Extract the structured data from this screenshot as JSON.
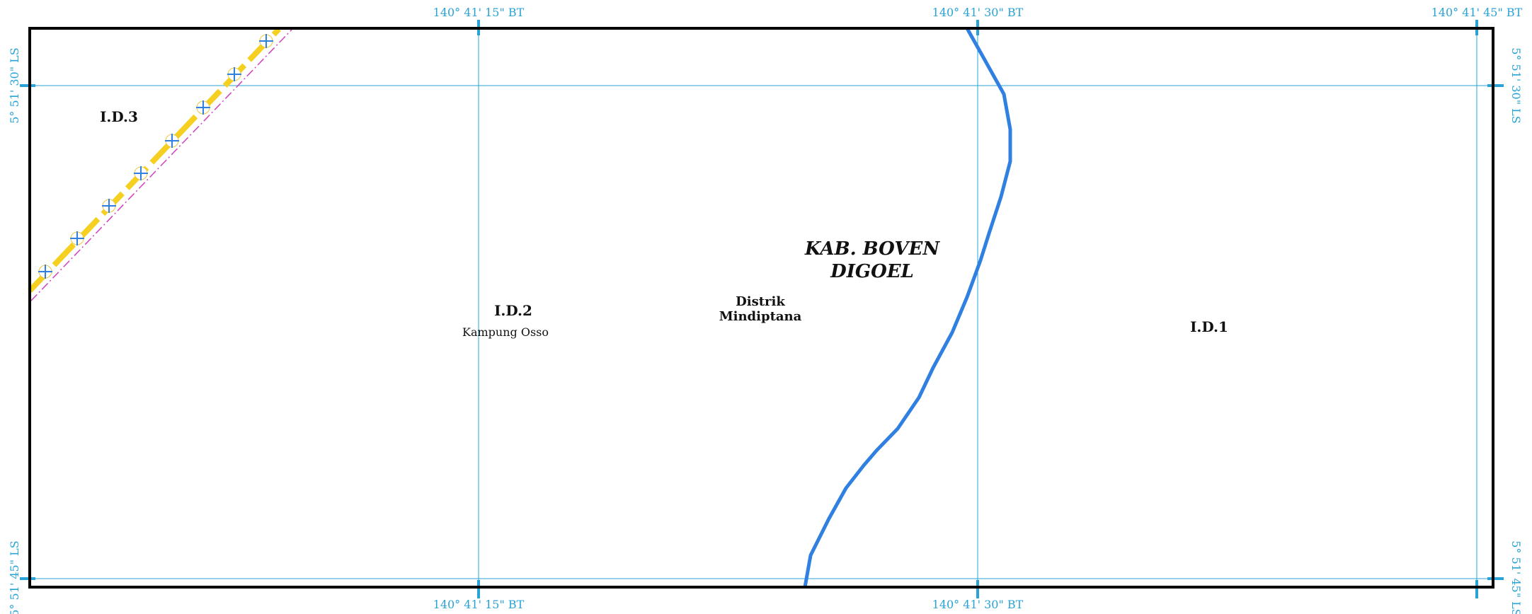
{
  "graticule": {
    "top_lon_labels": [
      "140° 41' 15\" BT",
      "140° 41' 30\" BT",
      "140° 41' 45\" BT"
    ],
    "bottom_lon_labels": [
      "140° 41' 15\" BT",
      "140° 41' 30\" BT"
    ],
    "left_lat_labels": [
      "5° 51' 30\" LS",
      "5° 51' 45\" LS"
    ],
    "right_lat_labels": [
      "5° 51' 30\" LS",
      "5° 51' 45\" LS"
    ],
    "line_color": "#29a3d6"
  },
  "labels": {
    "zone_1": "I.D.1",
    "zone_2": "I.D.2",
    "zone_3": "I.D.3",
    "village": "Kampung Osso",
    "district_line1": "Distrik",
    "district_line2": "Mindiptana",
    "regency_line1": "KAB. BOVEN",
    "regency_line2": "DIGOEL"
  },
  "features": {
    "river_color": "#2f80e0",
    "boundary_color": "#f5d020",
    "boundary_marker": "plus-circle-icon",
    "offset_line_color": "#d040c0",
    "frame_color": "#000000"
  }
}
